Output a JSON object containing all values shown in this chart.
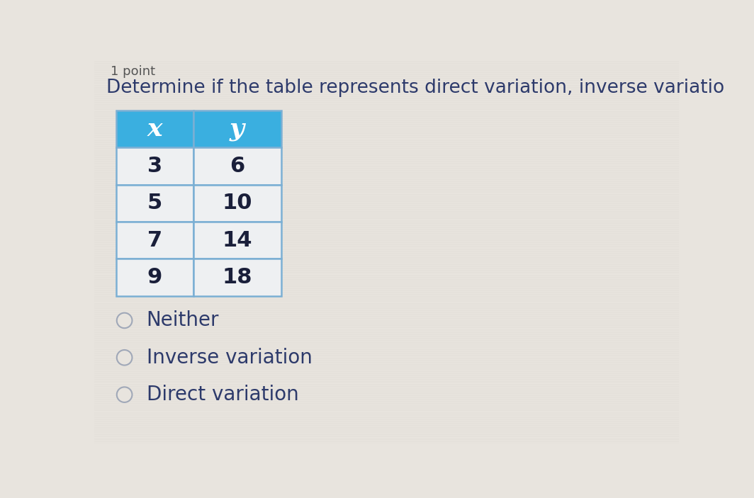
{
  "title": "Determine if the table represents direct variation, inverse variatio",
  "top_label": "1 point",
  "table_headers": [
    "x",
    "y"
  ],
  "table_data": [
    [
      "3",
      "6"
    ],
    [
      "5",
      "10"
    ],
    [
      "7",
      "14"
    ],
    [
      "9",
      "18"
    ]
  ],
  "header_bg_color": "#3AAFE0",
  "header_text_color": "#ffffff",
  "table_border_color": "#7BAFD4",
  "cell_bg_color": "#eef0f2",
  "options": [
    "Neither",
    "Inverse variation",
    "Direct variation"
  ],
  "background_color": "#e8e4de",
  "title_color": "#2d3a6b",
  "title_fontsize": 19,
  "table_fontsize": 22,
  "option_fontsize": 20,
  "data_text_color": "#1a1f3a"
}
